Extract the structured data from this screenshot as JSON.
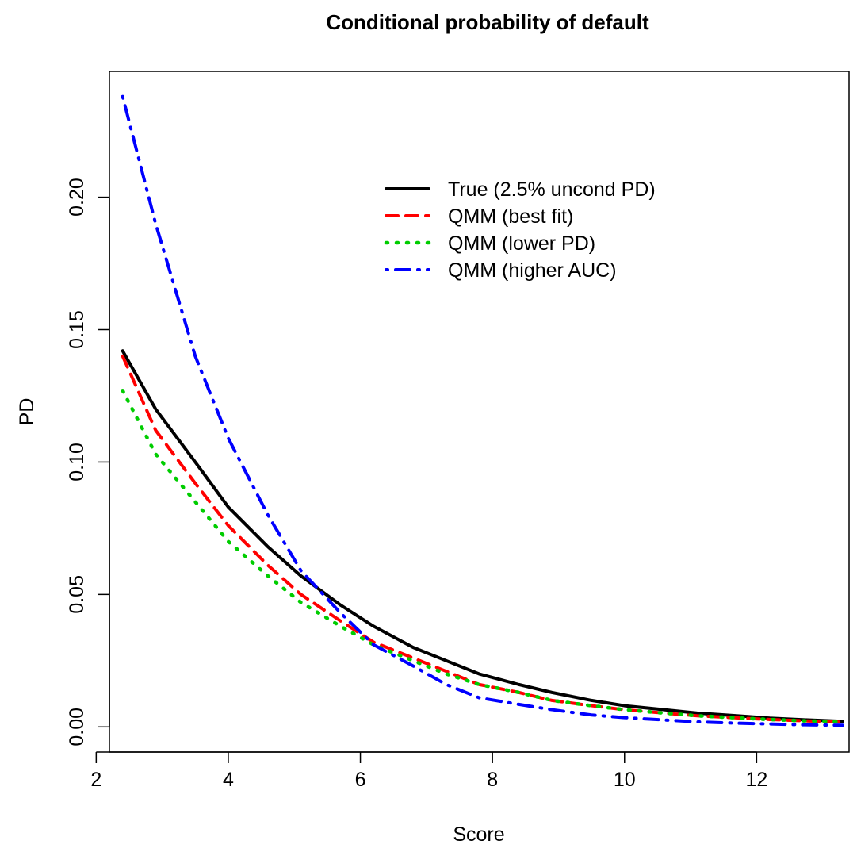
{
  "chart_data": {
    "type": "line",
    "title": "Conditional probability of default",
    "xlabel": "Score",
    "ylabel": "PD",
    "xlim": [
      2.2,
      13.4
    ],
    "ylim": [
      -0.0095,
      0.2475
    ],
    "xticks": [
      2,
      4,
      6,
      8,
      10,
      12
    ],
    "xtick_labels": [
      "2",
      "4",
      "6",
      "8",
      "10",
      "12"
    ],
    "yticks": [
      0.0,
      0.05,
      0.1,
      0.15,
      0.2
    ],
    "ytick_labels": [
      "0.00",
      "0.05",
      "0.10",
      "0.15",
      "0.20"
    ],
    "grid": false,
    "legend_position": "top-right",
    "x": [
      2.4,
      2.9,
      3.5,
      4.0,
      4.6,
      5.1,
      5.7,
      6.2,
      6.8,
      7.3,
      7.8,
      8.4,
      8.9,
      9.5,
      10.0,
      10.6,
      11.1,
      11.7,
      12.2,
      12.7,
      13.3
    ],
    "series": [
      {
        "name": "True (2.5% uncond PD)",
        "color": "#000000",
        "style": "solid",
        "values": [
          0.142,
          0.12,
          0.1,
          0.083,
          0.068,
          0.057,
          0.046,
          0.038,
          0.03,
          0.025,
          0.02,
          0.016,
          0.013,
          0.01,
          0.008,
          0.0065,
          0.0052,
          0.0042,
          0.0033,
          0.0027,
          0.0021
        ]
      },
      {
        "name": "QMM (best fit)",
        "color": "#ff0000",
        "style": "dashed",
        "values": [
          0.14,
          0.112,
          0.092,
          0.076,
          0.061,
          0.05,
          0.04,
          0.032,
          0.026,
          0.021,
          0.016,
          0.013,
          0.01,
          0.008,
          0.0065,
          0.0052,
          0.0042,
          0.0034,
          0.0028,
          0.0023,
          0.0018
        ]
      },
      {
        "name": "QMM (lower PD)",
        "color": "#00cd00",
        "style": "dotted",
        "values": [
          0.127,
          0.103,
          0.085,
          0.07,
          0.057,
          0.047,
          0.038,
          0.031,
          0.025,
          0.02,
          0.016,
          0.013,
          0.01,
          0.008,
          0.0065,
          0.0052,
          0.0042,
          0.0034,
          0.0028,
          0.0023,
          0.0019
        ]
      },
      {
        "name": "QMM (higher AUC)",
        "color": "#0000ff",
        "style": "dotdash",
        "values": [
          0.238,
          0.19,
          0.14,
          0.109,
          0.08,
          0.059,
          0.043,
          0.031,
          0.023,
          0.016,
          0.011,
          0.0085,
          0.0065,
          0.0045,
          0.0035,
          0.0026,
          0.0019,
          0.0014,
          0.0011,
          0.0008,
          0.0006
        ]
      }
    ]
  }
}
